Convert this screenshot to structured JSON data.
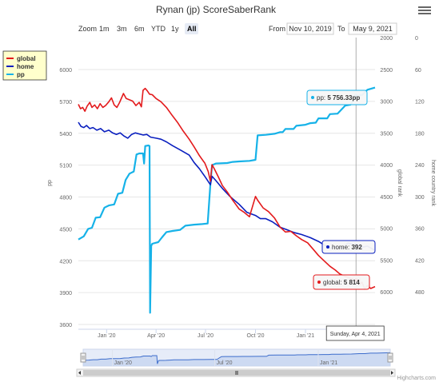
{
  "title": "Rynan (jp) ScoreSaberRank",
  "zoom": {
    "label": "Zoom",
    "buttons": [
      "1m",
      "3m",
      "6m",
      "YTD",
      "1y",
      "All"
    ],
    "selected": "All"
  },
  "range": {
    "from_label": "From",
    "from_value": "Nov 10, 2019",
    "to_label": "To",
    "to_value": "May 9, 2021"
  },
  "menu_icon": "hamburger-icon",
  "credits": "Highcharts.com",
  "chart_data": {
    "type": "line",
    "x_axis": {
      "type": "datetime",
      "min": "2019-11-10",
      "max": "2021-05-09",
      "ticks": [
        {
          "date": "2020-01-01",
          "label": "Jan '20"
        },
        {
          "date": "2020-04-01",
          "label": "Apr '20"
        },
        {
          "date": "2020-07-01",
          "label": "Jul '20"
        },
        {
          "date": "2020-10-01",
          "label": "Oct '20"
        },
        {
          "date": "2021-01-01",
          "label": "Jan '21"
        }
      ]
    },
    "y_axes": [
      {
        "id": "pp",
        "title": "pp",
        "position": "left",
        "min": 3600,
        "max": 6000,
        "ticks": [
          3600,
          3900,
          4200,
          4500,
          4800,
          5100,
          5400,
          5700,
          6000
        ]
      },
      {
        "id": "global",
        "title": "global rank",
        "position": "right-inner",
        "reversed": true,
        "min": 2000,
        "max": 6500,
        "ticks": [
          2000,
          2500,
          3000,
          3500,
          4000,
          4500,
          5000,
          5500,
          6000
        ]
      },
      {
        "id": "home",
        "title": "home country rank",
        "position": "right-outer",
        "reversed": true,
        "min": 0,
        "max": 540,
        "ticks": [
          0,
          60,
          120,
          180,
          240,
          300,
          360,
          420,
          480
        ]
      }
    ],
    "legend": {
      "placement": "left",
      "items": [
        {
          "name": "global",
          "color": "#e31a1c"
        },
        {
          "name": "home",
          "color": "#0a1fbf"
        },
        {
          "name": "pp",
          "color": "#16b2e8"
        }
      ]
    },
    "series": [
      {
        "name": "global",
        "axis": "global",
        "color": "#e31a1c",
        "points": [
          [
            "2019-11-10",
            3050
          ],
          [
            "2019-11-14",
            3120
          ],
          [
            "2019-11-18",
            3100
          ],
          [
            "2019-11-22",
            3160
          ],
          [
            "2019-11-26",
            3080
          ],
          [
            "2019-12-01",
            3020
          ],
          [
            "2019-12-05",
            3100
          ],
          [
            "2019-12-10",
            3060
          ],
          [
            "2019-12-15",
            3120
          ],
          [
            "2019-12-20",
            3040
          ],
          [
            "2019-12-25",
            3100
          ],
          [
            "2019-12-30",
            3070
          ],
          [
            "2020-01-05",
            3010
          ],
          [
            "2020-01-10",
            2950
          ],
          [
            "2020-01-15",
            3060
          ],
          [
            "2020-01-20",
            3100
          ],
          [
            "2020-01-25",
            3020
          ],
          [
            "2020-02-01",
            2880
          ],
          [
            "2020-02-06",
            2960
          ],
          [
            "2020-02-12",
            2980
          ],
          [
            "2020-02-18",
            3000
          ],
          [
            "2020-02-24",
            3070
          ],
          [
            "2020-03-01",
            3020
          ],
          [
            "2020-03-05",
            3090
          ],
          [
            "2020-03-08",
            2830
          ],
          [
            "2020-03-12",
            2800
          ],
          [
            "2020-03-16",
            2840
          ],
          [
            "2020-03-20",
            2890
          ],
          [
            "2020-03-25",
            2900
          ],
          [
            "2020-04-01",
            2960
          ],
          [
            "2020-04-10",
            3010
          ],
          [
            "2020-04-20",
            3100
          ],
          [
            "2020-05-01",
            3230
          ],
          [
            "2020-05-10",
            3330
          ],
          [
            "2020-05-20",
            3460
          ],
          [
            "2020-06-01",
            3600
          ],
          [
            "2020-06-10",
            3720
          ],
          [
            "2020-06-20",
            3860
          ],
          [
            "2020-06-30",
            3980
          ],
          [
            "2020-07-06",
            4110
          ],
          [
            "2020-07-10",
            4260
          ],
          [
            "2020-07-13",
            4000
          ],
          [
            "2020-07-18",
            4080
          ],
          [
            "2020-07-25",
            4200
          ],
          [
            "2020-08-01",
            4330
          ],
          [
            "2020-08-10",
            4430
          ],
          [
            "2020-08-20",
            4560
          ],
          [
            "2020-09-01",
            4700
          ],
          [
            "2020-09-10",
            4750
          ],
          [
            "2020-09-20",
            4820
          ],
          [
            "2020-10-01",
            4500
          ],
          [
            "2020-10-05",
            4560
          ],
          [
            "2020-10-15",
            4680
          ],
          [
            "2020-10-25",
            4740
          ],
          [
            "2020-11-05",
            4840
          ],
          [
            "2020-11-15",
            4980
          ],
          [
            "2020-11-25",
            5060
          ],
          [
            "2020-12-05",
            5050
          ],
          [
            "2020-12-15",
            5120
          ],
          [
            "2020-12-25",
            5180
          ],
          [
            "2021-01-05",
            5230
          ],
          [
            "2021-01-15",
            5330
          ],
          [
            "2021-01-25",
            5430
          ],
          [
            "2021-02-05",
            5520
          ],
          [
            "2021-02-15",
            5600
          ],
          [
            "2021-02-25",
            5660
          ],
          [
            "2021-03-05",
            5720
          ],
          [
            "2021-03-15",
            5760
          ],
          [
            "2021-03-25",
            5790
          ],
          [
            "2021-04-04",
            5814
          ],
          [
            "2021-04-10",
            5890
          ],
          [
            "2021-04-15",
            5850
          ],
          [
            "2021-04-20",
            5960
          ],
          [
            "2021-04-25",
            5900
          ],
          [
            "2021-05-01",
            5950
          ],
          [
            "2021-05-09",
            5920
          ]
        ]
      },
      {
        "name": "home",
        "axis": "home",
        "color": "#0a1fbf",
        "points": [
          [
            "2019-11-10",
            160
          ],
          [
            "2019-11-15",
            168
          ],
          [
            "2019-11-20",
            170
          ],
          [
            "2019-11-25",
            166
          ],
          [
            "2019-12-01",
            172
          ],
          [
            "2019-12-07",
            170
          ],
          [
            "2019-12-14",
            175
          ],
          [
            "2019-12-21",
            172
          ],
          [
            "2019-12-28",
            178
          ],
          [
            "2020-01-05",
            175
          ],
          [
            "2020-01-12",
            180
          ],
          [
            "2020-01-19",
            183
          ],
          [
            "2020-01-26",
            180
          ],
          [
            "2020-02-02",
            186
          ],
          [
            "2020-02-09",
            190
          ],
          [
            "2020-02-16",
            183
          ],
          [
            "2020-02-23",
            180
          ],
          [
            "2020-03-01",
            182
          ],
          [
            "2020-03-08",
            184
          ],
          [
            "2020-03-15",
            183
          ],
          [
            "2020-03-22",
            188
          ],
          [
            "2020-04-01",
            190
          ],
          [
            "2020-04-10",
            192
          ],
          [
            "2020-04-20",
            197
          ],
          [
            "2020-05-01",
            204
          ],
          [
            "2020-05-15",
            212
          ],
          [
            "2020-06-01",
            222
          ],
          [
            "2020-06-10",
            236
          ],
          [
            "2020-06-20",
            248
          ],
          [
            "2020-07-01",
            264
          ],
          [
            "2020-07-10",
            278
          ],
          [
            "2020-07-13",
            262
          ],
          [
            "2020-07-20",
            270
          ],
          [
            "2020-08-01",
            285
          ],
          [
            "2020-08-15",
            300
          ],
          [
            "2020-09-01",
            315
          ],
          [
            "2020-09-15",
            330
          ],
          [
            "2020-10-01",
            336
          ],
          [
            "2020-10-10",
            342
          ],
          [
            "2020-10-20",
            342
          ],
          [
            "2020-11-01",
            348
          ],
          [
            "2020-11-15",
            358
          ],
          [
            "2020-11-25",
            362
          ],
          [
            "2020-12-10",
            368
          ],
          [
            "2020-12-25",
            372
          ],
          [
            "2021-01-10",
            378
          ],
          [
            "2021-01-25",
            385
          ],
          [
            "2021-02-05",
            392
          ],
          [
            "2021-02-15",
            398
          ],
          [
            "2021-02-25",
            395
          ],
          [
            "2021-03-10",
            398
          ],
          [
            "2021-03-20",
            388
          ],
          [
            "2021-04-04",
            392
          ],
          [
            "2021-04-15",
            396
          ],
          [
            "2021-04-25",
            394
          ],
          [
            "2021-05-09",
            402
          ]
        ]
      },
      {
        "name": "pp",
        "axis": "pp",
        "color": "#16b2e8",
        "points": [
          [
            "2019-11-10",
            4400
          ],
          [
            "2019-11-20",
            4430
          ],
          [
            "2019-11-28",
            4500
          ],
          [
            "2019-12-05",
            4510
          ],
          [
            "2019-12-12",
            4605
          ],
          [
            "2019-12-20",
            4610
          ],
          [
            "2019-12-28",
            4700
          ],
          [
            "2020-01-05",
            4720
          ],
          [
            "2020-01-15",
            4730
          ],
          [
            "2020-01-22",
            4830
          ],
          [
            "2020-01-30",
            4840
          ],
          [
            "2020-02-05",
            4960
          ],
          [
            "2020-02-12",
            5020
          ],
          [
            "2020-02-20",
            5040
          ],
          [
            "2020-02-25",
            5200
          ],
          [
            "2020-03-01",
            5210
          ],
          [
            "2020-03-08",
            5210
          ],
          [
            "2020-03-10",
            5115
          ],
          [
            "2020-03-12",
            5280
          ],
          [
            "2020-03-18",
            5285
          ],
          [
            "2020-03-20",
            5280
          ],
          [
            "2020-03-21",
            3710
          ],
          [
            "2020-03-23",
            4340
          ],
          [
            "2020-03-25",
            4360
          ],
          [
            "2020-04-01",
            4370
          ],
          [
            "2020-04-05",
            4375
          ],
          [
            "2020-04-12",
            4420
          ],
          [
            "2020-04-20",
            4470
          ],
          [
            "2020-05-01",
            4480
          ],
          [
            "2020-05-15",
            4490
          ],
          [
            "2020-05-25",
            4530
          ],
          [
            "2020-06-10",
            4540
          ],
          [
            "2020-06-25",
            4545
          ],
          [
            "2020-07-05",
            4550
          ],
          [
            "2020-07-10",
            4920
          ],
          [
            "2020-07-13",
            5100
          ],
          [
            "2020-07-20",
            5115
          ],
          [
            "2020-08-10",
            5120
          ],
          [
            "2020-08-20",
            5130
          ],
          [
            "2020-09-01",
            5135
          ],
          [
            "2020-09-20",
            5140
          ],
          [
            "2020-10-01",
            5150
          ],
          [
            "2020-10-05",
            5380
          ],
          [
            "2020-10-20",
            5385
          ],
          [
            "2020-11-05",
            5395
          ],
          [
            "2020-11-15",
            5410
          ],
          [
            "2020-11-20",
            5410
          ],
          [
            "2020-11-25",
            5440
          ],
          [
            "2020-12-10",
            5440
          ],
          [
            "2020-12-15",
            5470
          ],
          [
            "2021-01-01",
            5480
          ],
          [
            "2021-01-10",
            5495
          ],
          [
            "2021-01-20",
            5500
          ],
          [
            "2021-01-25",
            5540
          ],
          [
            "2021-02-10",
            5540
          ],
          [
            "2021-02-15",
            5580
          ],
          [
            "2021-03-01",
            5585
          ],
          [
            "2021-03-15",
            5660
          ],
          [
            "2021-03-25",
            5670
          ],
          [
            "2021-04-04",
            5756.33
          ],
          [
            "2021-04-15",
            5760
          ],
          [
            "2021-04-25",
            5810
          ],
          [
            "2021-05-09",
            5830
          ]
        ]
      }
    ],
    "crosshair": {
      "date": "2021-04-04",
      "label": "Sunday, Apr 4, 2021"
    },
    "tooltips": [
      {
        "series": "pp",
        "prefix": "pp: ",
        "value": "5 756.33pp"
      },
      {
        "series": "home",
        "prefix": "home: ",
        "value": "392"
      },
      {
        "series": "global",
        "prefix": "global: ",
        "value": "5 814"
      }
    ],
    "navigator": {
      "ticks": [
        {
          "date": "2020-01-01",
          "label": "Jan '20"
        },
        {
          "date": "2020-07-01",
          "label": "Jul '20"
        },
        {
          "date": "2021-01-01",
          "label": "Jan '21"
        }
      ]
    }
  }
}
